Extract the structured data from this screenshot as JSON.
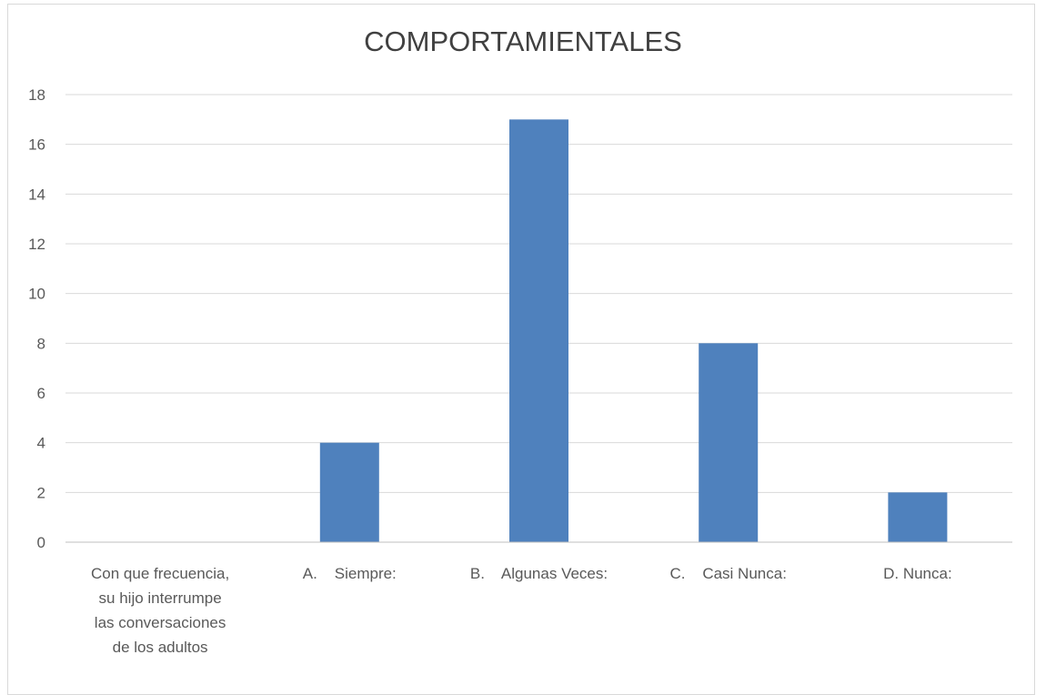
{
  "chart_data": {
    "type": "bar",
    "title": "COMPORTAMIENTALES",
    "categories": [
      "Con que frecuencia, su hijo interrumpe las conversaciones de los adultos",
      "A.    Siempre:",
      "B.    Algunas Veces:",
      "C.    Casi Nunca:",
      "D. Nunca:"
    ],
    "category_lines": [
      [
        "Con que frecuencia,",
        "su hijo interrumpe",
        "las conversaciones",
        "de los adultos"
      ],
      [
        "A.    Siempre:"
      ],
      [
        "B.    Algunas Veces:"
      ],
      [
        "C.    Casi Nunca:"
      ],
      [
        "D. Nunca:"
      ]
    ],
    "values": [
      null,
      4,
      17,
      8,
      2
    ],
    "ylim": [
      0,
      18
    ],
    "yticks": [
      0,
      2,
      4,
      6,
      8,
      10,
      12,
      14,
      16,
      18
    ],
    "xlabel": "",
    "ylabel": "",
    "grid": true,
    "bar_color": "#4f81bd",
    "grid_color": "#d9d9d9",
    "axis_color": "#bfbfbf"
  }
}
